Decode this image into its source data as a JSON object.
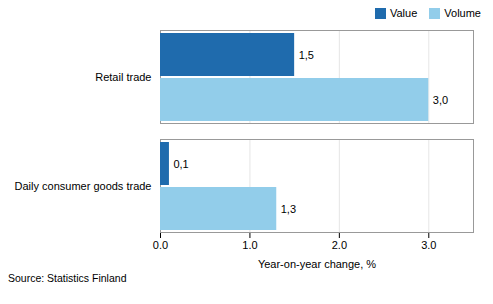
{
  "chart_data": {
    "type": "bar",
    "orientation": "horizontal",
    "categories": [
      "Retail trade",
      "Daily consumer goods trade"
    ],
    "series": [
      {
        "name": "Value",
        "color": "#1F6BAD",
        "values": [
          1.5,
          0.1
        ],
        "value_labels": [
          "1,5",
          "0,1"
        ]
      },
      {
        "name": "Volume",
        "color": "#92CDEA",
        "values": [
          3.0,
          1.3
        ],
        "value_labels": [
          "3,0",
          "1,3"
        ]
      }
    ],
    "xlabel": "Year-on-year change, %",
    "xlim": [
      0,
      3.5
    ],
    "xticks": [
      0,
      1,
      2,
      3
    ],
    "grid": true,
    "legend": "upper right",
    "data_labels": true,
    "caption": "Source: Statistics Finland"
  }
}
